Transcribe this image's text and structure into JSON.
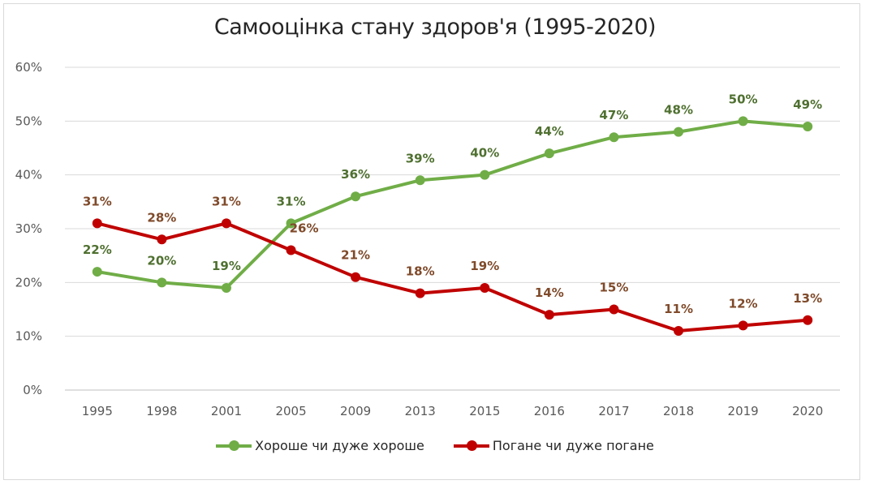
{
  "chart_data": {
    "type": "line",
    "title": "Самооцінка стану здоров'я (1995-2020)",
    "categories": [
      "1995",
      "1998",
      "2001",
      "2005",
      "2009",
      "2013",
      "2015",
      "2016",
      "2017",
      "2018",
      "2019",
      "2020"
    ],
    "ylim": [
      0,
      60
    ],
    "yticks": [
      "0%",
      "10%",
      "20%",
      "30%",
      "40%",
      "50%",
      "60%"
    ],
    "grid": true,
    "legend_position": "bottom",
    "series": [
      {
        "name": "Хороше чи дуже хороше",
        "color": "#70ad47",
        "label_color": "#4f7030",
        "values": [
          22,
          20,
          19,
          31,
          36,
          39,
          40,
          44,
          47,
          48,
          50,
          49
        ]
      },
      {
        "name": "Погане чи дуже погане",
        "color": "#c00000",
        "label_color": "#7f4a2a",
        "values": [
          31,
          28,
          31,
          26,
          21,
          18,
          19,
          14,
          15,
          11,
          12,
          13
        ]
      }
    ]
  }
}
